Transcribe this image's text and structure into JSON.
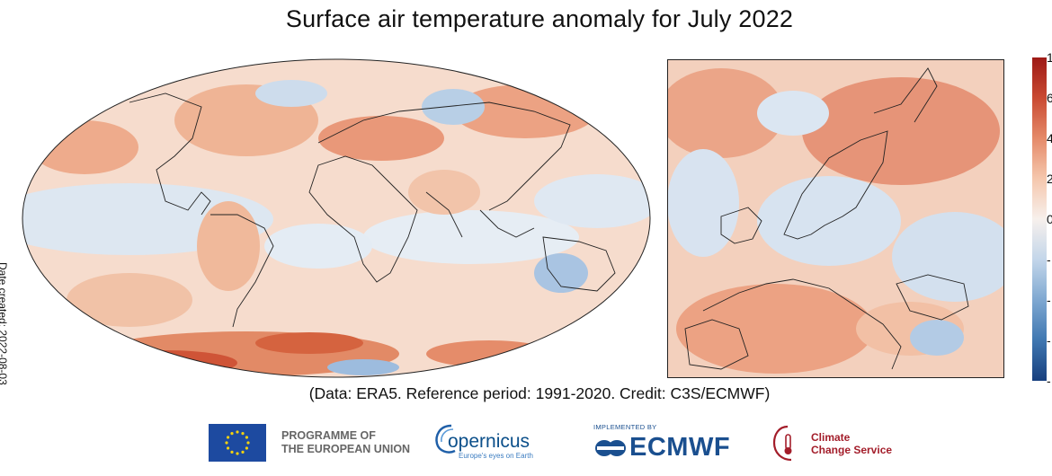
{
  "title": "Surface air temperature anomaly for July 2022",
  "date_created": "Date created: 2022-08-03",
  "credit": "(Data: ERA5.  Reference period: 1991-2020.  Credit: C3S/ECMWF)",
  "colorbar": {
    "tick_labels": [
      "1",
      "6",
      "4",
      "2",
      "0",
      "-",
      "-",
      "-",
      "-"
    ],
    "colors": [
      "#9e1a16",
      "#c94a32",
      "#e58a69",
      "#f5c7ad",
      "#f7f0ec",
      "#c3d6ea",
      "#7fa8d1",
      "#3f77b1",
      "#173f7e"
    ]
  },
  "logos": {
    "programme": [
      "PROGRAMME OF",
      "THE EUROPEAN UNION"
    ],
    "copernicus": "opernicus",
    "copernicus_sub": "Europe's eyes on Earth",
    "implemented_by": "IMPLEMENTED BY",
    "ecmwf": "ECMWF",
    "c3s": [
      "Climate",
      "Change Service"
    ]
  },
  "colors": {
    "warm_light": "#f6d2c0",
    "warm_mid": "#ec9f7f",
    "warm_strong": "#d4583c",
    "cool_light": "#dbe6f2",
    "cool_mid": "#9dbcde",
    "neutral": "#f7efe9"
  }
}
